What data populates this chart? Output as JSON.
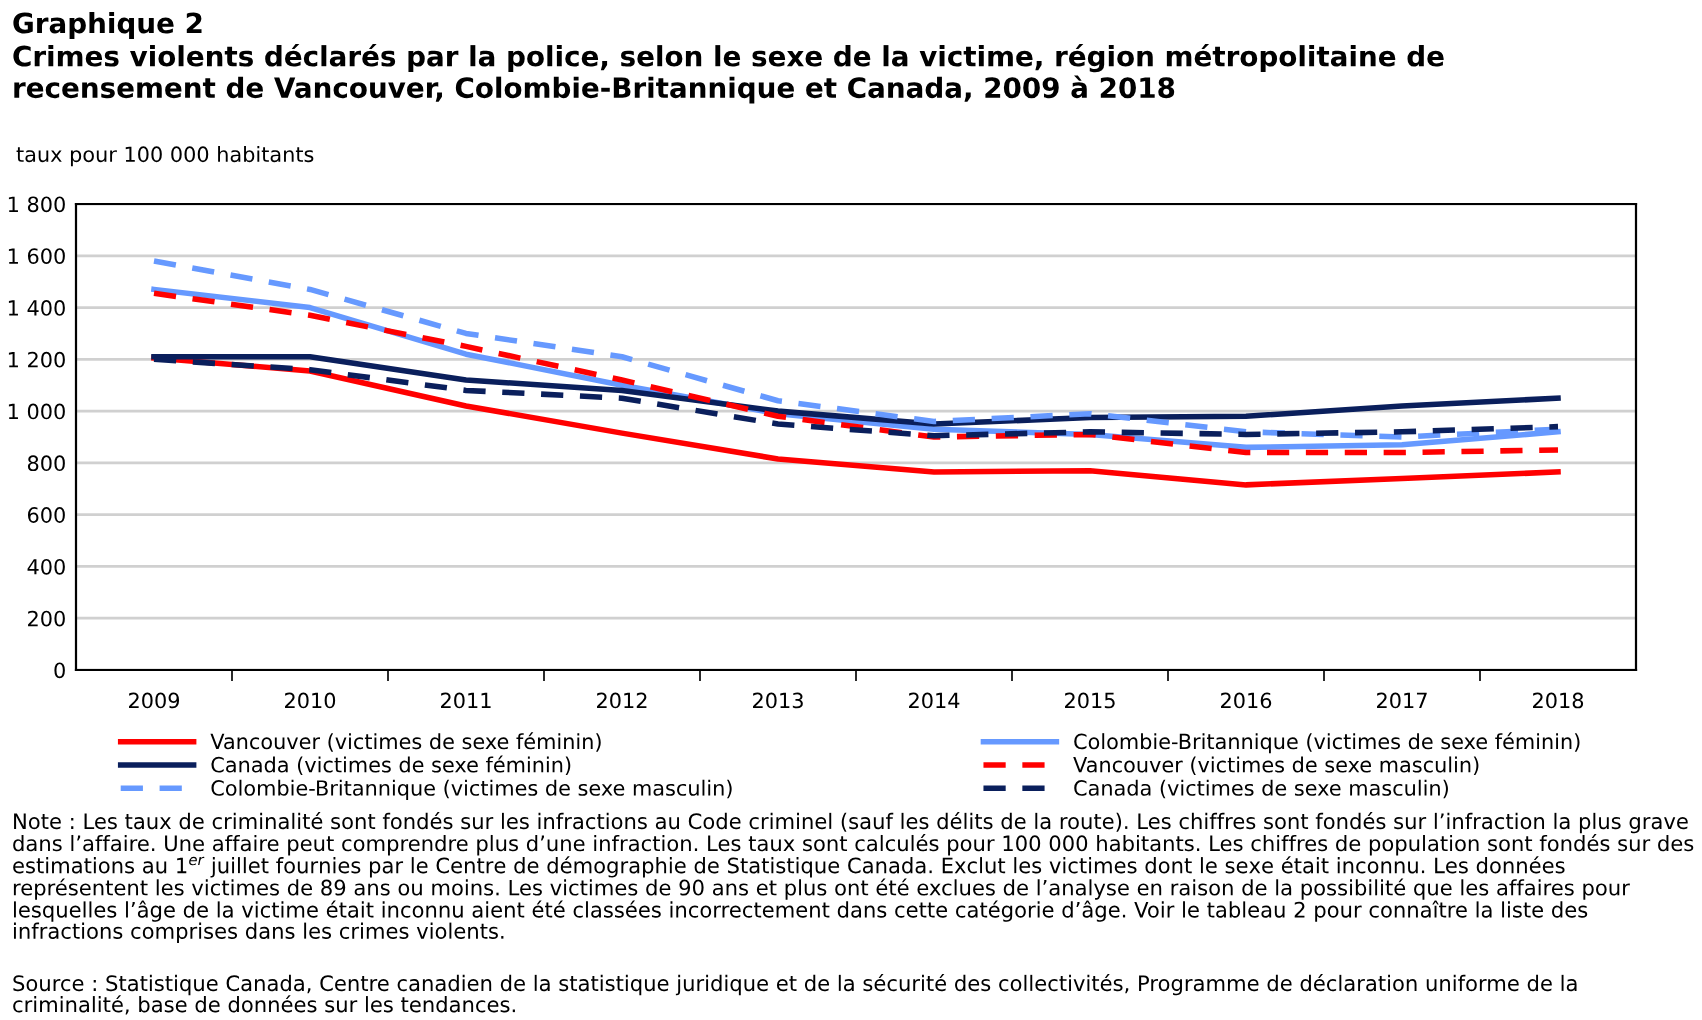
{
  "chart_data": {
    "type": "line",
    "title": "Graphique 2",
    "subtitle": "Crimes violents déclarés par la police, selon le sexe de la victime, région métropolitaine de\nrecensement de Vancouver, Colombie-Britannique et Canada, 2009 à 2018",
    "ylabel": "taux pour 100 000 habitants",
    "categories": [
      "2009",
      "2010",
      "2011",
      "2012",
      "2013",
      "2014",
      "2015",
      "2016",
      "2017",
      "2018"
    ],
    "series": [
      {
        "name": "Vancouver (victimes de sexe féminin)",
        "color": "#ff0000",
        "line_style": "solid",
        "values": [
          1205,
          1155,
          1020,
          915,
          815,
          765,
          770,
          715,
          740,
          765
        ]
      },
      {
        "name": "Colombie-Britannique (victimes de sexe féminin)",
        "color": "#6699ff",
        "line_style": "solid",
        "values": [
          1470,
          1400,
          1220,
          1100,
          990,
          930,
          910,
          860,
          870,
          920
        ]
      },
      {
        "name": "Canada (victimes de sexe féminin)",
        "color": "#0a1f5c",
        "line_style": "solid",
        "values": [
          1210,
          1210,
          1120,
          1080,
          1000,
          950,
          975,
          980,
          1020,
          1050
        ]
      },
      {
        "name": "Vancouver (victimes de sexe masculin)",
        "color": "#ff0000",
        "line_style": "dashed",
        "values": [
          1455,
          1370,
          1250,
          1120,
          980,
          900,
          910,
          840,
          840,
          850
        ]
      },
      {
        "name": "Colombie-Britannique (victimes de sexe masculin)",
        "color": "#6699ff",
        "line_style": "dashed",
        "values": [
          1580,
          1470,
          1300,
          1210,
          1040,
          960,
          990,
          920,
          900,
          930
        ]
      },
      {
        "name": "Canada (victimes de sexe masculin)",
        "color": "#0a1f5c",
        "line_style": "dashed",
        "values": [
          1200,
          1160,
          1080,
          1050,
          950,
          905,
          920,
          910,
          920,
          940
        ]
      }
    ],
    "ylim": [
      0,
      1800
    ],
    "yticks": [
      0,
      200,
      400,
      600,
      800,
      {
        "value": 1000,
        "label": "1 000"
      },
      {
        "value": 1200,
        "label": "1 200"
      },
      {
        "value": 1400,
        "label": "1 400"
      },
      {
        "value": 1600,
        "label": "1 600"
      },
      {
        "value": 1800,
        "label": "1 800"
      }
    ],
    "grid": "y",
    "legend": "bottom",
    "marker": "none",
    "annotations": [
      "Note : Les taux de criminalité sont fondés sur les infractions au Code criminel (sauf les délits de la route). Les chiffres sont fondés sur l’infraction la plus grave dans l’affaire. Une affaire peut comprendre plus d’une infraction. Les taux sont calculés pour 100 000 habitants. Les chiffres de population sont fondés sur des estimations au 1$^{er}$ juillet fournies par le Centre de démographie de Statistique Canada. Exclut les victimes dont le sexe était inconnu. Les données représentent les victimes de 89 ans ou moins. Les victimes de 90 ans et plus ont été exclues de l’analyse en raison de la possibilité que les affaires pour lesquelles l’âge de la victime était inconnu aient été classées incorrectement dans cette catégorie d’âge. Voir le tableau 2 pour connaître la liste des infractions comprises dans les crimes violents.",
      "Source : Statistique Canada, Centre canadien de la statistique juridique et de la sécurité des collectivités, Programme de déclaration uniforme de la criminalité, base de données sur les tendances."
    ]
  }
}
